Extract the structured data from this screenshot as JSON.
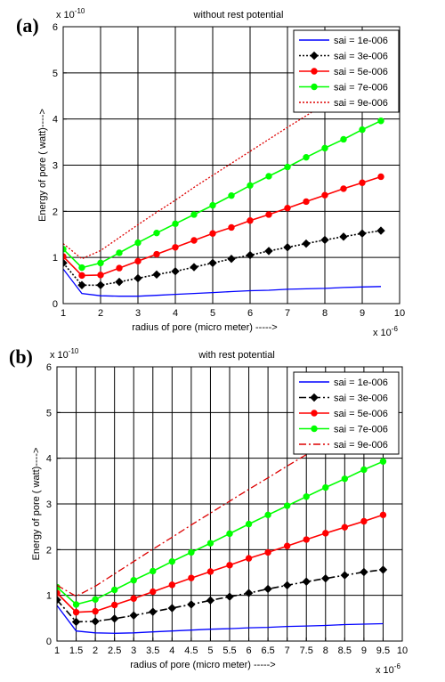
{
  "figure": {
    "panels": [
      {
        "letter": "(a)",
        "x_multiplier": "x 10",
        "x_exponent": "-6",
        "y_multiplier": "x 10",
        "y_exponent": "-10"
      },
      {
        "letter": "(b)",
        "x_multiplier": "x 10",
        "x_exponent": "-6",
        "y_multiplier": "x 10",
        "y_exponent": "-10"
      }
    ]
  },
  "chart_data": [
    {
      "type": "line",
      "title": "without rest potential",
      "xlabel": "radius of pore (micro meter) ----->",
      "ylabel": "Energy of pore ( watt)---->",
      "xlim": [
        1,
        10
      ],
      "ylim": [
        0,
        6
      ],
      "xticks": [
        "1",
        "2",
        "3",
        "4",
        "5",
        "6",
        "7",
        "8",
        "9",
        "10"
      ],
      "yticks": [
        "0",
        "1",
        "2",
        "3",
        "4",
        "5",
        "6"
      ],
      "grid": true,
      "legend_position": "top-right",
      "x": [
        1,
        1.5,
        2,
        2.5,
        3,
        3.5,
        4,
        4.5,
        5,
        5.5,
        6,
        6.5,
        7,
        7.5,
        8,
        8.5,
        9,
        9.5
      ],
      "series": [
        {
          "name": "sai = 1e-006",
          "color": "#0000ff",
          "style": "solid",
          "marker": "none",
          "values": [
            0.75,
            0.22,
            0.17,
            0.16,
            0.16,
            0.18,
            0.2,
            0.22,
            0.24,
            0.26,
            0.28,
            0.29,
            0.31,
            0.32,
            0.33,
            0.35,
            0.36,
            0.37
          ]
        },
        {
          "name": "sai = 3e-006",
          "color": "#000000",
          "style": "dotted",
          "marker": "diamond",
          "values": [
            0.88,
            0.4,
            0.4,
            0.47,
            0.55,
            0.63,
            0.7,
            0.79,
            0.88,
            0.97,
            1.05,
            1.14,
            1.22,
            1.3,
            1.38,
            1.45,
            1.52,
            1.58
          ]
        },
        {
          "name": "sai = 5e-006",
          "color": "#ff0000",
          "style": "solid",
          "marker": "dot",
          "values": [
            1.02,
            0.61,
            0.62,
            0.77,
            0.92,
            1.07,
            1.22,
            1.37,
            1.52,
            1.65,
            1.8,
            1.93,
            2.07,
            2.21,
            2.35,
            2.49,
            2.62,
            2.75
          ]
        },
        {
          "name": "sai = 7e-006",
          "color": "#00ff00",
          "style": "solid",
          "marker": "dot",
          "values": [
            1.18,
            0.78,
            0.88,
            1.1,
            1.32,
            1.53,
            1.73,
            1.93,
            2.13,
            2.34,
            2.56,
            2.76,
            2.96,
            3.17,
            3.37,
            3.56,
            3.77,
            3.96
          ]
        },
        {
          "name": "sai = 9e-006",
          "color": "#dd0000",
          "style": "dotted",
          "marker": "none",
          "values": [
            1.3,
            0.97,
            1.15,
            1.43,
            1.71,
            1.98,
            2.24,
            2.52,
            2.78,
            3.04,
            3.3,
            3.56,
            3.82,
            4.07,
            4.33,
            4.58,
            4.83,
            5.08
          ]
        }
      ]
    },
    {
      "type": "line",
      "title": "with rest potential",
      "xlabel": "radius of pore (micro meter) ----->",
      "ylabel": "Energy of pore ( watt)---->",
      "xlim": [
        1,
        10
      ],
      "ylim": [
        0,
        6
      ],
      "xticks": [
        "1",
        "1.5",
        "2",
        "2.5",
        "3",
        "3.5",
        "4",
        "4.5",
        "5",
        "5.5",
        "6",
        "6.5",
        "7",
        "7.5",
        "8",
        "8.5",
        "9",
        "9.5",
        "10"
      ],
      "yticks": [
        "0",
        "1",
        "2",
        "3",
        "4",
        "5",
        "6"
      ],
      "grid": true,
      "legend_position": "top-right",
      "x": [
        1,
        1.5,
        2,
        2.5,
        3,
        3.5,
        4,
        4.5,
        5,
        5.5,
        6,
        6.5,
        7,
        7.5,
        8,
        8.5,
        9,
        9.5
      ],
      "series": [
        {
          "name": "sai = 1e-006",
          "color": "#0000ff",
          "style": "solid",
          "marker": "none",
          "values": [
            0.78,
            0.22,
            0.18,
            0.17,
            0.18,
            0.2,
            0.22,
            0.24,
            0.26,
            0.27,
            0.29,
            0.3,
            0.32,
            0.33,
            0.34,
            0.36,
            0.37,
            0.38
          ]
        },
        {
          "name": "sai = 3e-006",
          "color": "#000000",
          "style": "dashdot",
          "marker": "diamond",
          "values": [
            0.9,
            0.42,
            0.43,
            0.49,
            0.56,
            0.64,
            0.72,
            0.8,
            0.89,
            0.97,
            1.05,
            1.14,
            1.22,
            1.3,
            1.37,
            1.44,
            1.51,
            1.56
          ]
        },
        {
          "name": "sai = 5e-006",
          "color": "#ff0000",
          "style": "solid",
          "marker": "dot",
          "values": [
            1.05,
            0.63,
            0.65,
            0.79,
            0.93,
            1.08,
            1.23,
            1.38,
            1.52,
            1.66,
            1.81,
            1.94,
            2.08,
            2.22,
            2.36,
            2.49,
            2.62,
            2.76
          ]
        },
        {
          "name": "sai = 7e-006",
          "color": "#00ff00",
          "style": "solid",
          "marker": "dot",
          "values": [
            1.18,
            0.8,
            0.91,
            1.12,
            1.33,
            1.53,
            1.74,
            1.94,
            2.14,
            2.35,
            2.56,
            2.76,
            2.96,
            3.16,
            3.36,
            3.55,
            3.75,
            3.93
          ]
        },
        {
          "name": "sai = 9e-006",
          "color": "#dd0000",
          "style": "dashdot",
          "marker": "none",
          "values": [
            1.22,
            0.98,
            1.2,
            1.47,
            1.74,
            2.01,
            2.27,
            2.54,
            2.8,
            3.06,
            3.32,
            3.57,
            3.83,
            4.08,
            4.34,
            4.58,
            4.83,
            5.08
          ]
        }
      ]
    }
  ]
}
